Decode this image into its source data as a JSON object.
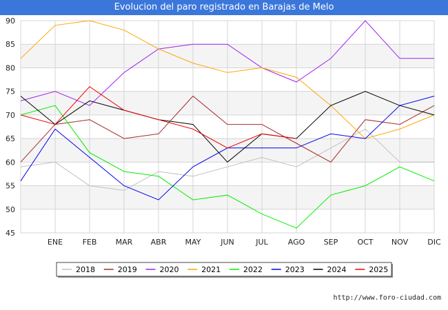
{
  "chart_data": {
    "type": "line",
    "title": "Evolucion del paro registrado en Barajas de Melo",
    "categories": [
      "",
      "ENE",
      "FEB",
      "MAR",
      "ABR",
      "MAY",
      "JUN",
      "JUL",
      "AGO",
      "SEP",
      "OCT",
      "NOV",
      "DIC"
    ],
    "ylim": [
      45,
      90
    ],
    "yticks": [
      45,
      50,
      55,
      60,
      65,
      70,
      75,
      80,
      85,
      90
    ],
    "grid": true,
    "legend_position": "bottom",
    "series": [
      {
        "name": "2018",
        "color": "#c0c0c0",
        "values": [
          59,
          60,
          55,
          54,
          58,
          57,
          59,
          61,
          59,
          63,
          67,
          60,
          60
        ]
      },
      {
        "name": "2019",
        "color": "#a52a2a",
        "values": [
          60,
          68,
          69,
          65,
          66,
          74,
          68,
          68,
          64,
          60,
          69,
          68,
          72
        ]
      },
      {
        "name": "2020",
        "color": "#a020f0",
        "values": [
          73,
          75,
          72,
          79,
          84,
          85,
          85,
          80,
          77,
          82,
          90,
          82,
          82
        ]
      },
      {
        "name": "2021",
        "color": "#ffa500",
        "values": [
          82,
          89,
          90,
          88,
          84,
          81,
          79,
          80,
          78,
          72,
          65,
          67,
          70
        ]
      },
      {
        "name": "2022",
        "color": "#00ee00",
        "values": [
          70,
          72,
          62,
          58,
          57,
          52,
          53,
          49,
          46,
          53,
          55,
          59,
          56
        ]
      },
      {
        "name": "2023",
        "color": "#0000ee",
        "values": [
          56,
          67,
          61,
          55,
          52,
          59,
          63,
          63,
          63,
          66,
          65,
          72,
          74
        ]
      },
      {
        "name": "2024",
        "color": "#000000",
        "values": [
          74,
          68,
          73,
          71,
          69,
          68,
          60,
          66,
          65,
          72,
          75,
          72,
          70
        ]
      },
      {
        "name": "2025",
        "color": "#ee0000",
        "values": [
          70,
          68,
          76,
          71,
          69,
          67,
          63,
          66,
          65,
          null,
          null,
          null,
          null
        ]
      }
    ]
  },
  "credit": "http://www.foro-ciudad.com"
}
